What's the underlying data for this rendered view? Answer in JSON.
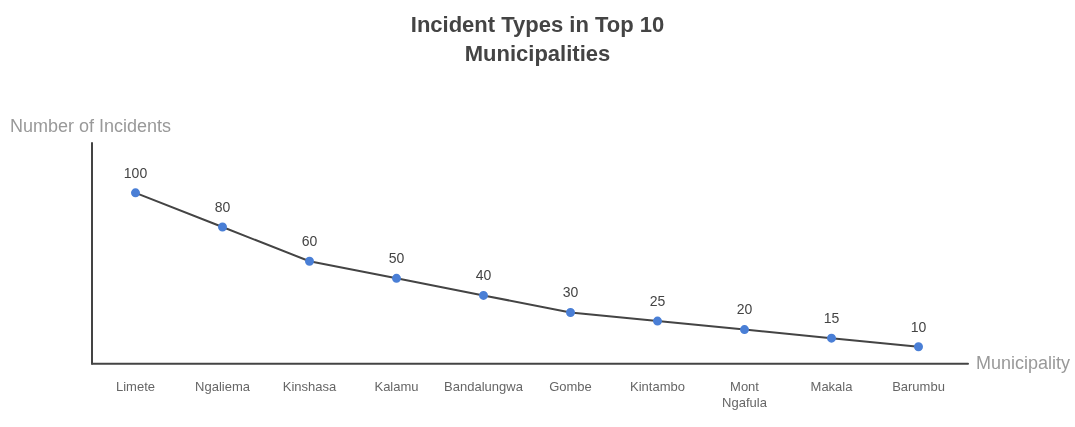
{
  "chart_data": {
    "type": "line",
    "title": "Incident Types in Top 10 Municipalities",
    "xlabel": "Municipality",
    "ylabel": "Number of Incidents",
    "categories": [
      "Limete",
      "Ngaliema",
      "Kinshasa",
      "Kalamu",
      "Bandalungwa",
      "Gombe",
      "Kintambo",
      "Mont Ngafula",
      "Makala",
      "Barumbu"
    ],
    "series": [
      {
        "color": "#4a7fd6",
        "values": [
          100,
          80,
          60,
          50,
          40,
          30,
          25,
          20,
          15,
          10
        ]
      }
    ],
    "ylim": [
      0,
      128
    ],
    "data_labels": true,
    "marker": "circle",
    "line_style": "solid",
    "grid": false,
    "legend": false
  }
}
